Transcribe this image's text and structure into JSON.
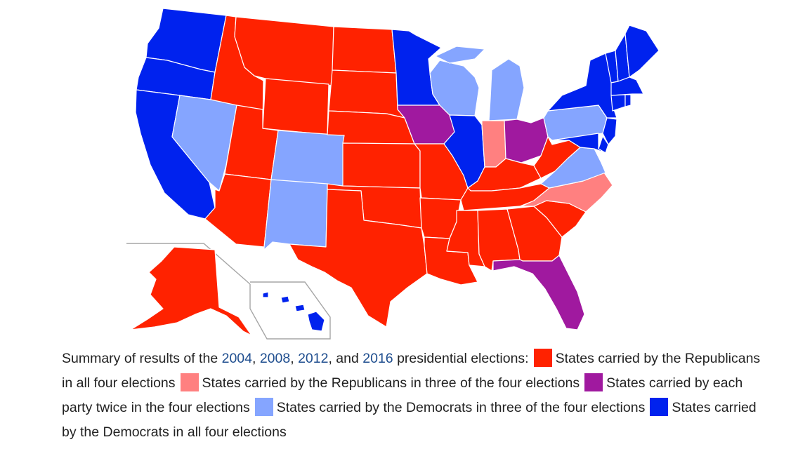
{
  "colors": {
    "rep_all_four": "#ff2200",
    "rep_three": "#ff8080",
    "split": "#a0199f",
    "dem_three": "#85a5ff",
    "dem_all_four": "#0022ee",
    "border": "#ffffff",
    "inset_line": "#a6a6a6",
    "year_link": "#1f4e8f"
  },
  "map": {
    "categories": {
      "rep_all_four": [
        "WA-none"
      ],
      "states": {
        "WA": "dem_all_four",
        "OR": "dem_all_four",
        "CA": "dem_all_four",
        "ID": "rep_all_four",
        "NV": "dem_three",
        "UT": "rep_all_four",
        "AZ": "rep_all_four",
        "MT": "rep_all_four",
        "WY": "rep_all_four",
        "CO": "dem_three",
        "NM": "dem_three",
        "ND": "rep_all_four",
        "SD": "rep_all_four",
        "NE": "rep_all_four",
        "KS": "rep_all_four",
        "OK": "rep_all_four",
        "TX": "rep_all_four",
        "MN": "dem_all_four",
        "IA": "split",
        "MO": "rep_all_four",
        "AR": "rep_all_four",
        "LA": "rep_all_four",
        "WI": "dem_three",
        "IL": "dem_all_four",
        "MI": "dem_three",
        "IN": "rep_three",
        "OH": "split",
        "KY": "rep_all_four",
        "TN": "rep_all_four",
        "MS": "rep_all_four",
        "AL": "rep_all_four",
        "GA": "rep_all_four",
        "FL": "split",
        "SC": "rep_all_four",
        "NC": "rep_three",
        "VA": "dem_three",
        "WV": "rep_all_four",
        "PA": "dem_three",
        "NY": "dem_all_four",
        "NJ": "dem_all_four",
        "DE": "dem_all_four",
        "MD": "dem_all_four",
        "VT": "dem_all_four",
        "NH": "dem_all_four",
        "ME": "dem_all_four",
        "MA": "dem_all_four",
        "CT": "dem_all_four",
        "RI": "dem_all_four",
        "AK": "rep_all_four",
        "HI": "dem_all_four"
      }
    }
  },
  "caption": {
    "intro": "Summary of results of the",
    "years": [
      "2004",
      "2008",
      "2012",
      "2016"
    ],
    "sep1": ",",
    "sep2": ",",
    "sep3": ", and",
    "after_years": "presidential elections:",
    "legend": [
      {
        "key": "rep_all_four",
        "label": "States carried by the Republicans in all four elections"
      },
      {
        "key": "rep_three",
        "label": "States carried by the Republicans in three of the four elections"
      },
      {
        "key": "split",
        "label": "States carried by each party twice in the four elections"
      },
      {
        "key": "dem_three",
        "label": "States carried by the Democrats in three of the four elections"
      },
      {
        "key": "dem_all_four",
        "label": "States carried by the Democrats in all four elections"
      }
    ]
  }
}
